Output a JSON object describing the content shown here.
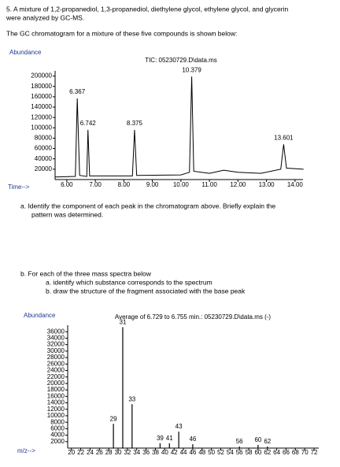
{
  "question": {
    "intro": "5. A mixture of 1,2-propanediol, 1,3-propanediol, diethylene glycol, ethylene glycol, and glycerin",
    "intro2": "were analyzed by GC-MS.",
    "lead": "The GC chromatogram for a mixture of these five compounds is shown below:",
    "part_a": "a.  Identify the component of each peak in the chromatogram above.  Briefly explain the",
    "part_a2": "pattern was determined.",
    "part_b": "b.  For each of the three mass spectra below",
    "part_b1": "a.  identify which substance corresponds to the spectrum",
    "part_b2": "b.  draw the structure of the fragment associated with the base peak"
  },
  "chart_data": [
    {
      "type": "line",
      "title": "TIC: 05230729.D\\data.ms",
      "y_label": "Abundance",
      "x_label": "Time-->",
      "x": [
        5.6,
        6.3,
        6.367,
        6.45,
        6.7,
        6.742,
        6.8,
        8.3,
        8.375,
        8.45,
        10.0,
        10.3,
        10.379,
        10.45,
        11.0,
        11.5,
        12.0,
        12.8,
        13.5,
        13.601,
        13.7,
        14.3
      ],
      "series": [
        {
          "color": "#000000",
          "values": [
            5000,
            6000,
            157000,
            8000,
            6000,
            96000,
            7000,
            7000,
            96000,
            8000,
            9000,
            14000,
            199000,
            16000,
            12000,
            18000,
            14000,
            12000,
            20000,
            68000,
            22000,
            20000
          ]
        }
      ],
      "peak_labels": [
        6.367,
        6.742,
        8.375,
        10.379,
        13.601
      ],
      "xlim": [
        5.59,
        14.28
      ],
      "ylim": [
        0,
        210000
      ],
      "xticks": [
        {
          "value": 6,
          "label": "6.00"
        },
        {
          "value": 7,
          "label": "7.00"
        },
        {
          "value": 8,
          "label": "8.00"
        },
        {
          "value": 9,
          "label": "9.00"
        },
        {
          "value": 10,
          "label": "10.00"
        },
        {
          "value": 11,
          "label": "11.00"
        },
        {
          "value": 12,
          "label": "12.00"
        },
        {
          "value": 13,
          "label": "13.00"
        },
        {
          "value": 14,
          "label": "14.00"
        }
      ],
      "yticks": [
        20000,
        40000,
        60000,
        80000,
        100000,
        120000,
        140000,
        160000,
        180000,
        200000
      ]
    },
    {
      "type": "bar",
      "title": "Average of 6.729 to 6.755 min.: 05230729.D\\data.ms (-)",
      "y_label": "Abundance",
      "x_label": "m/z-->",
      "x": [
        29,
        31,
        33,
        39,
        41,
        43,
        46,
        56,
        60,
        62
      ],
      "values": [
        7500,
        37400,
        13600,
        1500,
        1500,
        5100,
        1200,
        500,
        1000,
        500
      ],
      "color": "#000000",
      "xlim": [
        19.2,
        73
      ],
      "ylim": [
        0,
        38000
      ],
      "xticks": [
        20,
        22,
        24,
        26,
        28,
        30,
        32,
        34,
        36,
        38,
        40,
        42,
        44,
        46,
        48,
        50,
        52,
        54,
        56,
        58,
        60,
        62,
        64,
        66,
        68,
        70,
        72
      ],
      "yticks": [
        2000,
        4000,
        6000,
        8000,
        10000,
        12000,
        14000,
        16000,
        18000,
        20000,
        22000,
        24000,
        26000,
        28000,
        30000,
        32000,
        34000,
        36000
      ]
    }
  ]
}
